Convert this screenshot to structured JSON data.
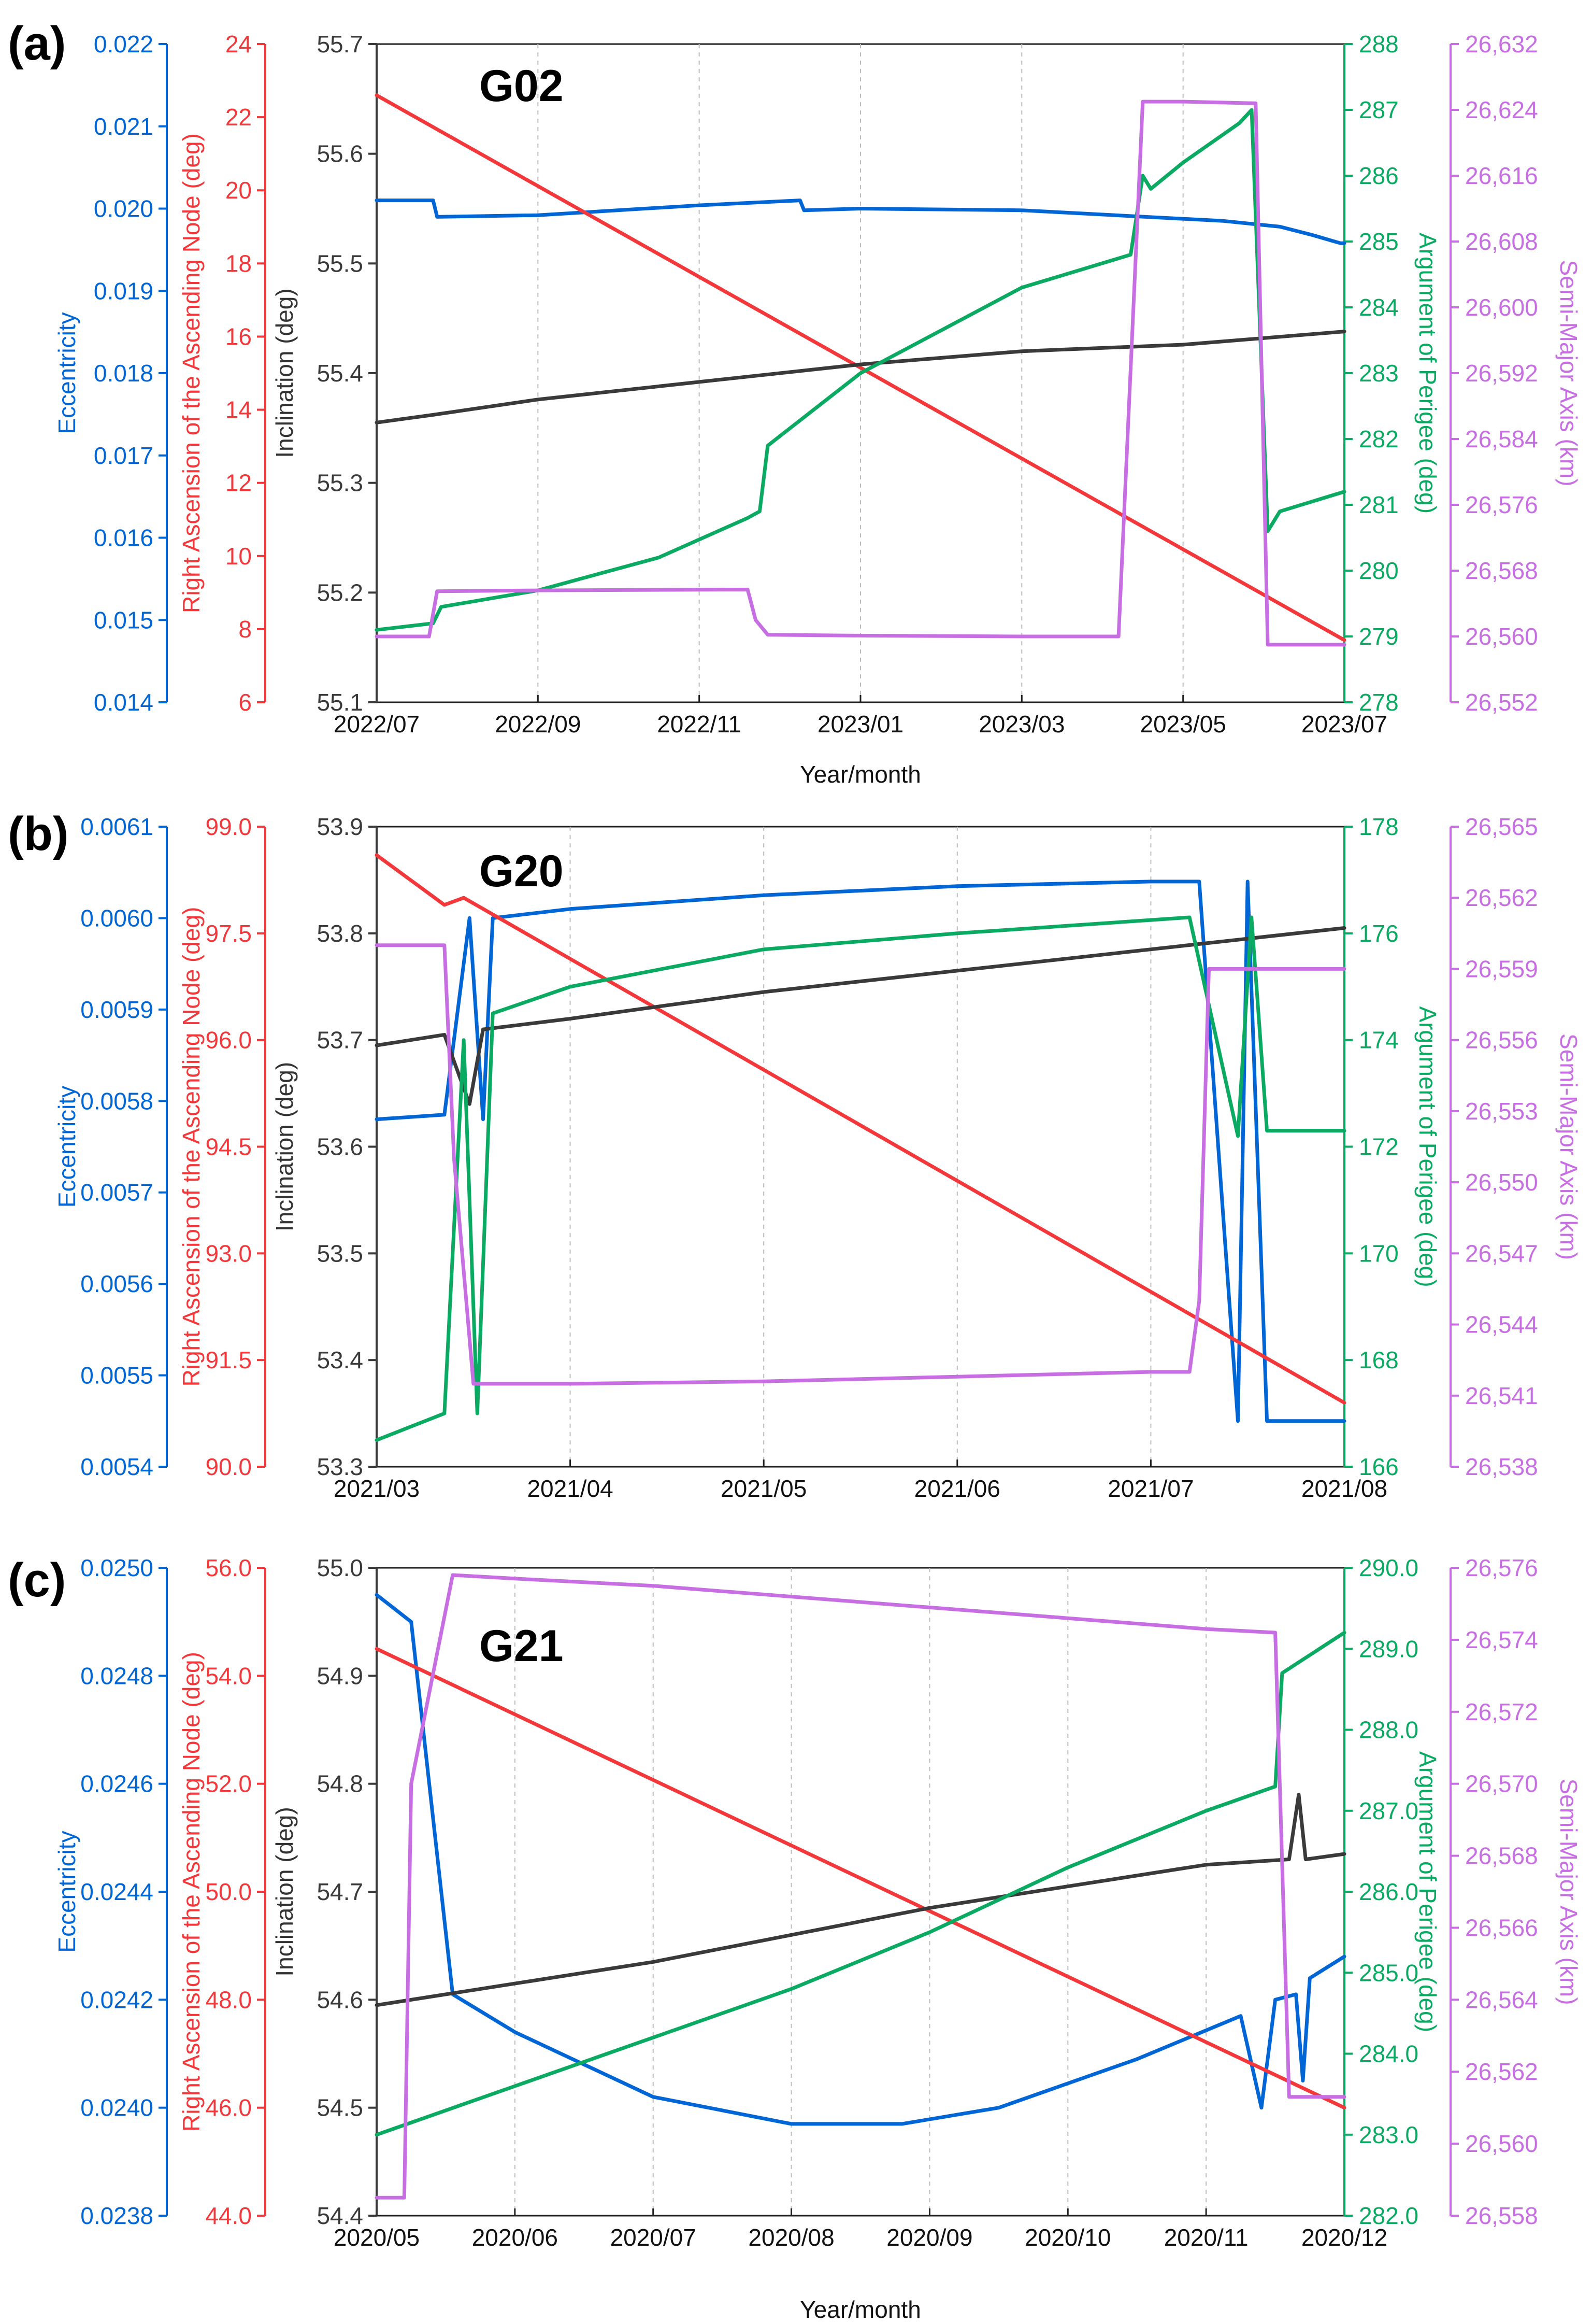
{
  "figure": {
    "colors": {
      "ecc": "#0066D6",
      "raan": "#F2383B",
      "inc": "#3A3A3A",
      "aop": "#0BAA63",
      "sma": "#C76EE3",
      "grid": "#BDBDBD"
    }
  },
  "chart_data": [
    {
      "type": "line",
      "panel_label": "(a)",
      "satellite": "G02",
      "xlabel": "Year/month",
      "x_ticks": [
        "2022/07",
        "2022/09",
        "2022/11",
        "2023/01",
        "2023/03",
        "2023/05",
        "2023/07"
      ],
      "x_range": [
        0,
        12
      ],
      "axes": [
        {
          "key": "ecc",
          "label": "Eccentricity",
          "range": [
            0.014,
            0.022
          ],
          "ticks": [
            "0.014",
            "0.015",
            "0.016",
            "0.017",
            "0.018",
            "0.019",
            "0.020",
            "0.021",
            "0.022"
          ]
        },
        {
          "key": "raan",
          "label": "Right Ascension of the Ascending Node (deg)",
          "range": [
            6,
            24
          ],
          "ticks": [
            "6",
            "8",
            "10",
            "12",
            "14",
            "16",
            "18",
            "20",
            "22",
            "24"
          ]
        },
        {
          "key": "inc",
          "label": "Inclination (deg)",
          "range": [
            55.1,
            55.7
          ],
          "ticks": [
            "55.1",
            "55.2",
            "55.3",
            "55.4",
            "55.5",
            "55.6",
            "55.7"
          ]
        },
        {
          "key": "aop",
          "label": "Argument of Perigee (deg)",
          "range": [
            278,
            288
          ],
          "ticks": [
            "278",
            "279",
            "280",
            "281",
            "282",
            "283",
            "284",
            "285",
            "286",
            "287",
            "288"
          ]
        },
        {
          "key": "sma",
          "label": "Semi-Major Axis (km)",
          "range": [
            26552,
            26632
          ],
          "ticks": [
            "26,552",
            "26,560",
            "26,568",
            "26,576",
            "26,584",
            "26,592",
            "26,600",
            "26,608",
            "26,616",
            "26,624",
            "26,632"
          ]
        }
      ],
      "series": [
        {
          "name": "Eccentricity",
          "axis": "ecc",
          "points": [
            [
              0,
              0.0201
            ],
            [
              0.7,
              0.0201
            ],
            [
              0.75,
              0.0199
            ],
            [
              2,
              0.01992
            ],
            [
              4,
              0.02004
            ],
            [
              5.25,
              0.0201
            ],
            [
              5.3,
              0.01998
            ],
            [
              6,
              0.02
            ],
            [
              8,
              0.01998
            ],
            [
              10.5,
              0.01985
            ],
            [
              11.2,
              0.01978
            ],
            [
              11.6,
              0.01968
            ],
            [
              11.95,
              0.01958
            ],
            [
              12,
              0.01958
            ]
          ]
        },
        {
          "name": "Right Ascension of the Ascending Node",
          "axis": "raan",
          "points": [
            [
              0,
              22.6
            ],
            [
              12,
              7.7
            ]
          ]
        },
        {
          "name": "Inclination",
          "axis": "inc",
          "points": [
            [
              0,
              55.355
            ],
            [
              0.7,
              55.362
            ],
            [
              2,
              55.376
            ],
            [
              4,
              55.392
            ],
            [
              6,
              55.408
            ],
            [
              8,
              55.42
            ],
            [
              10,
              55.426
            ],
            [
              12,
              55.438
            ]
          ]
        },
        {
          "name": "Argument of Perigee",
          "axis": "aop",
          "points": [
            [
              0,
              279.1
            ],
            [
              0.7,
              279.2
            ],
            [
              0.8,
              279.45
            ],
            [
              2,
              279.7
            ],
            [
              3.5,
              280.2
            ],
            [
              4.6,
              280.8
            ],
            [
              4.75,
              280.9
            ],
            [
              4.85,
              281.9
            ],
            [
              6,
              283.0
            ],
            [
              8,
              284.3
            ],
            [
              9.35,
              284.8
            ],
            [
              9.5,
              286.0
            ],
            [
              9.6,
              285.8
            ],
            [
              10,
              286.2
            ],
            [
              10.7,
              286.8
            ],
            [
              10.85,
              287.0
            ],
            [
              11.05,
              280.6
            ],
            [
              11.2,
              280.9
            ],
            [
              12,
              281.2
            ]
          ]
        },
        {
          "name": "Semi-Major Axis",
          "axis": "sma",
          "points": [
            [
              0,
              26560
            ],
            [
              0.65,
              26560
            ],
            [
              0.75,
              26565.5
            ],
            [
              2,
              26565.6
            ],
            [
              4.6,
              26565.7
            ],
            [
              4.7,
              26562
            ],
            [
              4.85,
              26560.2
            ],
            [
              6,
              26560.1
            ],
            [
              8,
              26560
            ],
            [
              9.2,
              26560
            ],
            [
              9.5,
              26625
            ],
            [
              10,
              26625
            ],
            [
              10.9,
              26624.8
            ],
            [
              11.05,
              26559
            ],
            [
              12,
              26559
            ]
          ]
        }
      ]
    },
    {
      "type": "line",
      "panel_label": "(b)",
      "satellite": "G20",
      "xlabel": "",
      "x_ticks": [
        "2021/03",
        "2021/04",
        "2021/05",
        "2021/06",
        "2021/07",
        "2021/08"
      ],
      "x_range": [
        0,
        5
      ],
      "axes": [
        {
          "key": "ecc",
          "label": "Eccentricity",
          "range": [
            0.0054,
            0.0061
          ],
          "ticks": [
            "0.0054",
            "0.0055",
            "0.0056",
            "0.0057",
            "0.0058",
            "0.0059",
            "0.0060",
            "0.0061"
          ]
        },
        {
          "key": "raan",
          "label": "Right Ascension of the Ascending Node (deg)",
          "range": [
            90.0,
            99.0
          ],
          "ticks": [
            "90.0",
            "91.5",
            "93.0",
            "94.5",
            "96.0",
            "97.5",
            "99.0"
          ]
        },
        {
          "key": "inc",
          "label": "Inclination (deg)",
          "range": [
            53.3,
            53.9
          ],
          "ticks": [
            "53.3",
            "53.4",
            "53.5",
            "53.6",
            "53.7",
            "53.8",
            "53.9"
          ]
        },
        {
          "key": "aop",
          "label": "Argument of Perigee (deg)",
          "range": [
            166,
            178
          ],
          "ticks": [
            "166",
            "168",
            "170",
            "172",
            "174",
            "176",
            "178"
          ]
        },
        {
          "key": "sma",
          "label": "Semi-Major Axis (km)",
          "range": [
            26538,
            26565
          ],
          "ticks": [
            "26,538",
            "26,541",
            "26,544",
            "26,547",
            "26,550",
            "26,553",
            "26,556",
            "26,559",
            "26,562",
            "26,565"
          ]
        }
      ],
      "series": [
        {
          "name": "Eccentricity",
          "axis": "ecc",
          "points": [
            [
              0,
              0.00578
            ],
            [
              0.35,
              0.005785
            ],
            [
              0.48,
              0.006
            ],
            [
              0.55,
              0.00578
            ],
            [
              0.6,
              0.006
            ],
            [
              1,
              0.00601
            ],
            [
              2,
              0.006025
            ],
            [
              3,
              0.006035
            ],
            [
              4,
              0.00604
            ],
            [
              4.25,
              0.00604
            ],
            [
              4.45,
              0.00545
            ],
            [
              4.5,
              0.00604
            ],
            [
              4.6,
              0.00545
            ],
            [
              5,
              0.00545
            ]
          ]
        },
        {
          "name": "Right Ascension of the Ascending Node",
          "axis": "raan",
          "points": [
            [
              0,
              98.6
            ],
            [
              0.35,
              97.9
            ],
            [
              0.45,
              98.0
            ],
            [
              5,
              90.9
            ]
          ]
        },
        {
          "name": "Inclination",
          "axis": "inc",
          "points": [
            [
              0,
              53.695
            ],
            [
              0.35,
              53.705
            ],
            [
              0.48,
              53.64
            ],
            [
              0.55,
              53.71
            ],
            [
              1,
              53.72
            ],
            [
              2,
              53.745
            ],
            [
              3,
              53.765
            ],
            [
              4,
              53.785
            ],
            [
              5,
              53.805
            ]
          ]
        },
        {
          "name": "Argument of Perigee",
          "axis": "aop",
          "points": [
            [
              0,
              166.5
            ],
            [
              0.35,
              167.0
            ],
            [
              0.45,
              174.0
            ],
            [
              0.52,
              167.0
            ],
            [
              0.6,
              174.5
            ],
            [
              1,
              175.0
            ],
            [
              2,
              175.7
            ],
            [
              3,
              176.0
            ],
            [
              4.2,
              176.3
            ],
            [
              4.45,
              172.2
            ],
            [
              4.52,
              176.3
            ],
            [
              4.6,
              172.3
            ],
            [
              5,
              172.3
            ]
          ]
        },
        {
          "name": "Semi-Major Axis",
          "axis": "sma",
          "points": [
            [
              0,
              26560
            ],
            [
              0.35,
              26560
            ],
            [
              0.4,
              26551
            ],
            [
              0.5,
              26541.5
            ],
            [
              1,
              26541.5
            ],
            [
              2,
              26541.6
            ],
            [
              3,
              26541.8
            ],
            [
              4,
              26542
            ],
            [
              4.2,
              26542
            ],
            [
              4.25,
              26545
            ],
            [
              4.3,
              26559
            ],
            [
              5,
              26559
            ]
          ]
        }
      ]
    },
    {
      "type": "line",
      "panel_label": "(c)",
      "satellite": "G21",
      "xlabel": "Year/month",
      "x_ticks": [
        "2020/05",
        "2020/06",
        "2020/07",
        "2020/08",
        "2020/09",
        "2020/10",
        "2020/11",
        "2020/12"
      ],
      "x_range": [
        0,
        7
      ],
      "axes": [
        {
          "key": "ecc",
          "label": "Eccentricity",
          "range": [
            0.0238,
            0.025
          ],
          "ticks": [
            "0.0238",
            "0.0240",
            "0.0242",
            "0.0244",
            "0.0246",
            "0.0248",
            "0.0250"
          ]
        },
        {
          "key": "raan",
          "label": "Right Ascension of the Ascending Node (deg)",
          "range": [
            44.0,
            56.0
          ],
          "ticks": [
            "44.0",
            "46.0",
            "48.0",
            "50.0",
            "52.0",
            "54.0",
            "56.0"
          ]
        },
        {
          "key": "inc",
          "label": "Inclination (deg)",
          "range": [
            54.4,
            55.0
          ],
          "ticks": [
            "54.4",
            "54.5",
            "54.6",
            "54.7",
            "54.8",
            "54.9",
            "55.0"
          ]
        },
        {
          "key": "aop",
          "label": "Argument of Perigee (deg)",
          "range": [
            282.0,
            290.0
          ],
          "ticks": [
            "282.0",
            "283.0",
            "284.0",
            "285.0",
            "286.0",
            "287.0",
            "288.0",
            "289.0",
            "290.0"
          ]
        },
        {
          "key": "sma",
          "label": "Semi-Major Axis (km)",
          "range": [
            26558,
            26576
          ],
          "ticks": [
            "26,558",
            "26,560",
            "26,562",
            "26,564",
            "26,566",
            "26,568",
            "26,570",
            "26,572",
            "26,574",
            "26,576"
          ]
        }
      ],
      "series": [
        {
          "name": "Eccentricity",
          "axis": "ecc",
          "points": [
            [
              0,
              0.02495
            ],
            [
              0.25,
              0.0249
            ],
            [
              0.55,
              0.02421
            ],
            [
              1,
              0.02414
            ],
            [
              2,
              0.02402
            ],
            [
              3,
              0.02397
            ],
            [
              3.8,
              0.02397
            ],
            [
              4.5,
              0.024
            ],
            [
              5.5,
              0.02409
            ],
            [
              6.25,
              0.02417
            ],
            [
              6.4,
              0.024
            ],
            [
              6.5,
              0.0242
            ],
            [
              6.65,
              0.02421
            ],
            [
              6.7,
              0.02405
            ],
            [
              6.75,
              0.02424
            ],
            [
              7,
              0.02428
            ]
          ]
        },
        {
          "name": "Right Ascension of the Ascending Node",
          "axis": "raan",
          "points": [
            [
              0,
              54.5
            ],
            [
              7,
              46.0
            ]
          ]
        },
        {
          "name": "Inclination",
          "axis": "inc",
          "points": [
            [
              0,
              54.595
            ],
            [
              1,
              54.615
            ],
            [
              2,
              54.635
            ],
            [
              3,
              54.66
            ],
            [
              4,
              54.685
            ],
            [
              5,
              54.705
            ],
            [
              6,
              54.725
            ],
            [
              6.6,
              54.73
            ],
            [
              6.67,
              54.79
            ],
            [
              6.72,
              54.73
            ],
            [
              7,
              54.735
            ]
          ]
        },
        {
          "name": "Argument of Perigee",
          "axis": "aop",
          "points": [
            [
              0,
              283.0
            ],
            [
              0.5,
              283.3
            ],
            [
              1,
              283.6
            ],
            [
              2,
              284.2
            ],
            [
              3,
              284.8
            ],
            [
              4,
              285.5
            ],
            [
              5,
              286.3
            ],
            [
              6,
              287.0
            ],
            [
              6.5,
              287.3
            ],
            [
              6.55,
              288.7
            ],
            [
              7,
              289.2
            ]
          ]
        },
        {
          "name": "Semi-Major Axis",
          "axis": "sma",
          "points": [
            [
              0,
              26558.5
            ],
            [
              0.2,
              26558.5
            ],
            [
              0.25,
              26570
            ],
            [
              0.55,
              26575.8
            ],
            [
              1,
              26575.7
            ],
            [
              2,
              26575.5
            ],
            [
              3,
              26575.2
            ],
            [
              4,
              26574.9
            ],
            [
              5,
              26574.6
            ],
            [
              6,
              26574.3
            ],
            [
              6.5,
              26574.2
            ],
            [
              6.6,
              26561.3
            ],
            [
              7,
              26561.3
            ]
          ]
        }
      ]
    }
  ]
}
